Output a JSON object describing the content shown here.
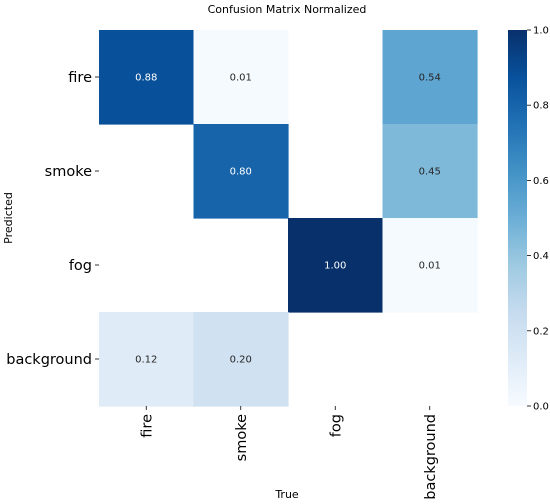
{
  "chart_data": {
    "type": "heatmap",
    "title": "Confusion Matrix Normalized",
    "xlabel": "True",
    "ylabel": "Predicted",
    "rows": [
      "fire",
      "smoke",
      "fog",
      "background"
    ],
    "columns": [
      "fire",
      "smoke",
      "fog",
      "background"
    ],
    "values": [
      [
        0.88,
        0.01,
        null,
        0.54
      ],
      [
        null,
        0.8,
        null,
        0.45
      ],
      [
        null,
        null,
        1.0,
        0.01
      ],
      [
        0.12,
        0.2,
        null,
        null
      ]
    ],
    "labels": [
      [
        "0.88",
        "0.01",
        "",
        "0.54"
      ],
      [
        "",
        "0.80",
        "",
        "0.45"
      ],
      [
        "",
        "",
        "1.00",
        "0.01"
      ],
      [
        "0.12",
        "0.20",
        "",
        ""
      ]
    ],
    "colorbar": {
      "min": 0.0,
      "max": 1.0,
      "ticks": [
        0.0,
        0.2,
        0.4,
        0.6,
        0.8,
        1.0
      ],
      "tick_labels": [
        "0.0",
        "0.2",
        "0.4",
        "0.6",
        "0.8",
        "1.0"
      ],
      "colormap": "Blues"
    }
  }
}
